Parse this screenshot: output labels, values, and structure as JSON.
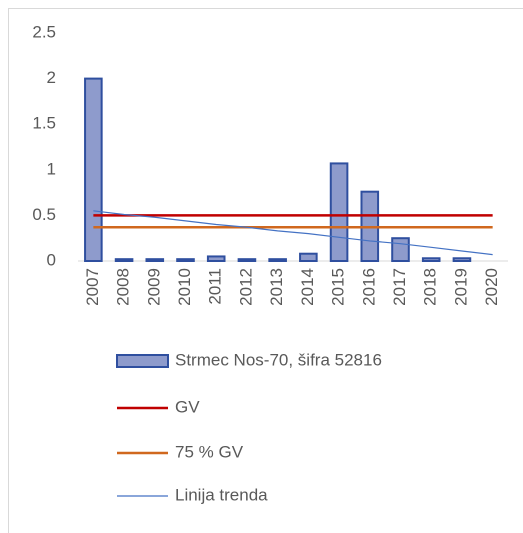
{
  "chart_data": {
    "type": "bar",
    "categories": [
      "2007",
      "2008",
      "2009",
      "2010",
      "2011",
      "2012",
      "2013",
      "2014",
      "2015",
      "2016",
      "2017",
      "2018",
      "2019",
      "2020"
    ],
    "series": [
      {
        "name": "Strmec Nos-70, šifra 52816",
        "type": "bar",
        "color": "#8e9bcc",
        "edge": "#2f4f9f",
        "values": [
          2.0,
          0.02,
          0.02,
          0.02,
          0.05,
          0.02,
          0.02,
          0.08,
          1.07,
          0.76,
          0.25,
          0.03,
          0.03,
          null
        ]
      },
      {
        "name": "GV",
        "type": "line",
        "color": "#c00000",
        "values": [
          0.5,
          0.5,
          0.5,
          0.5,
          0.5,
          0.5,
          0.5,
          0.5,
          0.5,
          0.5,
          0.5,
          0.5,
          0.5,
          0.5
        ]
      },
      {
        "name": "75 % GV",
        "type": "line",
        "color": "#d0681e",
        "values": [
          0.37,
          0.37,
          0.37,
          0.37,
          0.37,
          0.37,
          0.37,
          0.37,
          0.37,
          0.37,
          0.37,
          0.37,
          0.37,
          0.37
        ]
      },
      {
        "name": "Linija trenda",
        "type": "line",
        "color": "#4472c4",
        "values": [
          0.55,
          0.51,
          0.48,
          0.44,
          0.4,
          0.37,
          0.33,
          0.3,
          0.26,
          0.22,
          0.19,
          0.15,
          0.11,
          0.07
        ]
      }
    ],
    "ylim": [
      0,
      2.5
    ],
    "yticks": [
      0,
      {
        "value": 0.5,
        "label": "0.5"
      },
      1,
      {
        "value": 1.5,
        "label": "1.5"
      },
      2,
      {
        "value": 2.5,
        "label": "2.5"
      }
    ],
    "legend": "bottom"
  }
}
